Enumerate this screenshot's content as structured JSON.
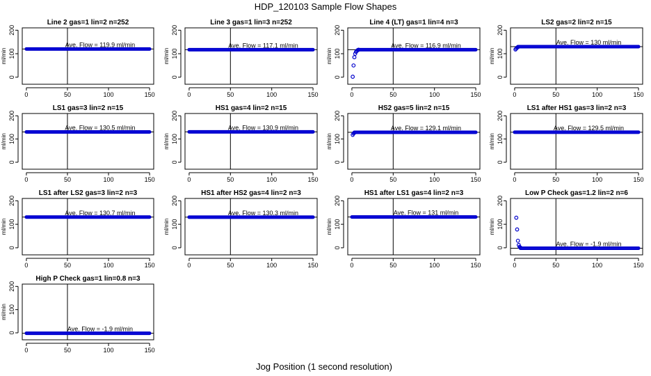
{
  "figure": {
    "title": "HDP_120103  Sample Flow Shapes",
    "x_axis_label": "Jog Position (1 second resolution)"
  },
  "chart_data": [
    {
      "type": "scatter",
      "title": "Line 2 gas=1 lin=2 n=252",
      "ylabel": "ml/min",
      "xlim": [
        0,
        150
      ],
      "ylim": [
        -30,
        210
      ],
      "xticks": [
        0,
        50,
        100,
        150
      ],
      "yticks": [
        0,
        100,
        200
      ],
      "vline": 50,
      "hline": 119.9,
      "annotation": "Ave. Flow =  119.9  ml/min",
      "color": "#0000cc",
      "series": [
        {
          "x": [
            0,
            150
          ],
          "y": [
            119.9,
            119.9
          ],
          "shape": "flat"
        }
      ]
    },
    {
      "type": "scatter",
      "title": "Line 3 gas=1 lin=3 n=252",
      "ylabel": "ml/min",
      "xlim": [
        0,
        150
      ],
      "ylim": [
        -30,
        210
      ],
      "xticks": [
        0,
        50,
        100,
        150
      ],
      "yticks": [
        0,
        100,
        200
      ],
      "vline": 50,
      "hline": 117.1,
      "annotation": "Ave. Flow =  117.1  ml/min",
      "color": "#0000cc",
      "series": [
        {
          "x": [
            0,
            150
          ],
          "y": [
            117.1,
            117.1
          ],
          "shape": "flat"
        }
      ]
    },
    {
      "type": "scatter",
      "title": "Line 4 (LT) gas=1 lin=4 n=3",
      "ylabel": "ml/min",
      "xlim": [
        0,
        150
      ],
      "ylim": [
        -30,
        210
      ],
      "xticks": [
        0,
        50,
        100,
        150
      ],
      "yticks": [
        0,
        100,
        200
      ],
      "vline": 50,
      "hline": 116.9,
      "annotation": "Ave. Flow =  116.9  ml/min",
      "color": "#0000cc",
      "series": [
        {
          "x": [
            1,
            2,
            3,
            4,
            5,
            6,
            7,
            8
          ],
          "y": [
            2,
            50,
            85,
            100,
            108,
            112,
            115,
            116.9
          ],
          "shape": "points"
        },
        {
          "x": [
            8,
            150
          ],
          "y": [
            117,
            117
          ],
          "shape": "flat"
        }
      ]
    },
    {
      "type": "scatter",
      "title": "LS2 gas=2 lin=2 n=15",
      "ylabel": "ml/min",
      "xlim": [
        0,
        150
      ],
      "ylim": [
        -30,
        210
      ],
      "xticks": [
        0,
        50,
        100,
        150
      ],
      "yticks": [
        0,
        100,
        200
      ],
      "vline": 50,
      "hline": 130,
      "annotation": "Ave. Flow =  130  ml/min",
      "color": "#0000cc",
      "series": [
        {
          "x": [
            1,
            2,
            3,
            4
          ],
          "y": [
            118,
            122,
            126,
            128
          ],
          "shape": "points"
        },
        {
          "x": [
            4,
            150
          ],
          "y": [
            130,
            130
          ],
          "shape": "flat"
        }
      ]
    },
    {
      "type": "scatter",
      "title": "LS1 gas=3 lin=2 n=15",
      "ylabel": "ml/min",
      "xlim": [
        0,
        150
      ],
      "ylim": [
        -30,
        210
      ],
      "xticks": [
        0,
        50,
        100,
        150
      ],
      "yticks": [
        0,
        100,
        200
      ],
      "vline": 50,
      "hline": 130.5,
      "annotation": "Ave. Flow =  130.5  ml/min",
      "color": "#0000cc",
      "series": [
        {
          "x": [
            0,
            150
          ],
          "y": [
            130.5,
            130.5
          ],
          "shape": "flat"
        }
      ]
    },
    {
      "type": "scatter",
      "title": "HS1 gas=4 lin=2 n=15",
      "ylabel": "ml/min",
      "xlim": [
        0,
        150
      ],
      "ylim": [
        -30,
        210
      ],
      "xticks": [
        0,
        50,
        100,
        150
      ],
      "yticks": [
        0,
        100,
        200
      ],
      "vline": 50,
      "hline": 130.9,
      "annotation": "Ave. Flow =  130.9  ml/min",
      "color": "#0000cc",
      "series": [
        {
          "x": [
            0,
            150
          ],
          "y": [
            130.9,
            130.9
          ],
          "shape": "flat"
        }
      ]
    },
    {
      "type": "scatter",
      "title": "HS2 gas=5 lin=2 n=15",
      "ylabel": "ml/min",
      "xlim": [
        0,
        150
      ],
      "ylim": [
        -30,
        210
      ],
      "xticks": [
        0,
        50,
        100,
        150
      ],
      "yticks": [
        0,
        100,
        200
      ],
      "vline": 50,
      "hline": 129.1,
      "annotation": "Ave. Flow =  129.1  ml/min",
      "color": "#0000cc",
      "series": [
        {
          "x": [
            1,
            2,
            3
          ],
          "y": [
            118,
            124,
            127
          ],
          "shape": "points"
        },
        {
          "x": [
            3,
            150
          ],
          "y": [
            129.1,
            129.1
          ],
          "shape": "flat"
        }
      ]
    },
    {
      "type": "scatter",
      "title": "LS1 after HS1 gas=3 lin=2 n=3",
      "ylabel": "ml/min",
      "xlim": [
        0,
        150
      ],
      "ylim": [
        -30,
        210
      ],
      "xticks": [
        0,
        50,
        100,
        150
      ],
      "yticks": [
        0,
        100,
        200
      ],
      "vline": 50,
      "hline": 129.5,
      "annotation": "Ave. Flow =  129.5  ml/min",
      "color": "#0000cc",
      "series": [
        {
          "x": [
            0,
            150
          ],
          "y": [
            129.5,
            129.5
          ],
          "shape": "flat"
        }
      ]
    },
    {
      "type": "scatter",
      "title": "LS1 after LS2 gas=3 lin=2 n=3",
      "ylabel": "ml/min",
      "xlim": [
        0,
        150
      ],
      "ylim": [
        -30,
        210
      ],
      "xticks": [
        0,
        50,
        100,
        150
      ],
      "yticks": [
        0,
        100,
        200
      ],
      "vline": 50,
      "hline": 130.7,
      "annotation": "Ave. Flow =  130.7  ml/min",
      "color": "#0000cc",
      "series": [
        {
          "x": [
            0,
            150
          ],
          "y": [
            130.7,
            130.7
          ],
          "shape": "flat"
        }
      ]
    },
    {
      "type": "scatter",
      "title": "HS1 after HS2 gas=4 lin=2 n=3",
      "ylabel": "ml/min",
      "xlim": [
        0,
        150
      ],
      "ylim": [
        -30,
        210
      ],
      "xticks": [
        0,
        50,
        100,
        150
      ],
      "yticks": [
        0,
        100,
        200
      ],
      "vline": 50,
      "hline": 130.3,
      "annotation": "Ave. Flow =  130.3  ml/min",
      "color": "#0000cc",
      "series": [
        {
          "x": [
            0,
            150
          ],
          "y": [
            130.3,
            130.3
          ],
          "shape": "flat"
        }
      ]
    },
    {
      "type": "scatter",
      "title": "HS1 after LS1 gas=4 lin=2 n=3",
      "ylabel": "ml/min",
      "xlim": [
        0,
        150
      ],
      "ylim": [
        -30,
        210
      ],
      "xticks": [
        0,
        50,
        100,
        150
      ],
      "yticks": [
        0,
        100,
        200
      ],
      "vline": 50,
      "hline": 131,
      "annotation": "Ave. Flow =  131  ml/min",
      "color": "#0000cc",
      "series": [
        {
          "x": [
            0,
            150
          ],
          "y": [
            131,
            131
          ],
          "shape": "flat"
        }
      ]
    },
    {
      "type": "scatter",
      "title": "Low P Check gas=1.2 lin=2 n=6",
      "ylabel": "ml/min",
      "xlim": [
        0,
        150
      ],
      "ylim": [
        -30,
        210
      ],
      "xticks": [
        0,
        50,
        100,
        150
      ],
      "yticks": [
        0,
        100,
        200
      ],
      "vline": 50,
      "hline": -1.9,
      "annotation": "Ave. Flow =  -1.9  ml/min",
      "color": "#0000cc",
      "series": [
        {
          "x": [
            2,
            3,
            4,
            5,
            6,
            7
          ],
          "y": [
            128,
            78,
            30,
            12,
            4,
            1
          ],
          "shape": "points"
        },
        {
          "x": [
            7,
            150
          ],
          "y": [
            -1.9,
            -1.9
          ],
          "shape": "flat"
        }
      ]
    },
    {
      "type": "scatter",
      "title": "High P Check gas=1 lin=0.8 n=3",
      "ylabel": "ml/min",
      "xlim": [
        0,
        150
      ],
      "ylim": [
        -30,
        210
      ],
      "xticks": [
        0,
        50,
        100,
        150
      ],
      "yticks": [
        0,
        100,
        200
      ],
      "vline": 50,
      "hline": -1.9,
      "annotation": "Ave. Flow =  -1.9  ml/min",
      "color": "#0000cc",
      "series": [
        {
          "x": [
            0,
            150
          ],
          "y": [
            -1.9,
            -1.9
          ],
          "shape": "flat"
        }
      ]
    }
  ]
}
